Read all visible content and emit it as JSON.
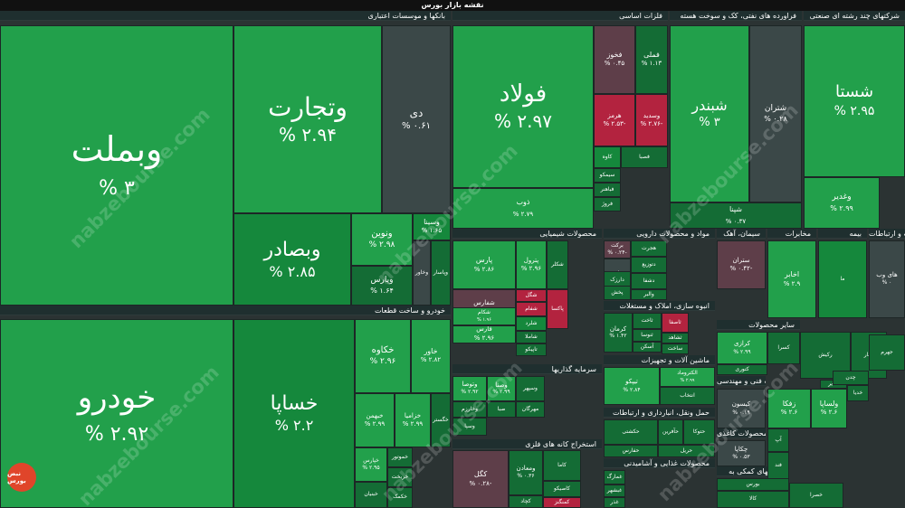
{
  "title": "نقشه بازار بورس",
  "watermark": "nabzebourse.com",
  "logo_text": "نبض بورس",
  "colors": {
    "g": "#22a04b",
    "G": "#15883c",
    "d": "#146c35",
    "k": "#3b4848",
    "r": "#b3233f",
    "R": "#962238",
    "m": "#5e3e49"
  },
  "sectors": [
    {
      "name": "بانکها و موسسات اعتباری"
    },
    {
      "name": "فلزات اساسی"
    },
    {
      "name": "فراورده های نفتی، کک و سوخت هسته"
    },
    {
      "name": "شرکتهای چند رشته ای صنعتی"
    },
    {
      "name": "خودرو و ساخت قطعات"
    },
    {
      "name": "محصولات شیمیایی"
    },
    {
      "name": "مواد و محصولات دارویی"
    },
    {
      "name": "سیمان، آهک"
    },
    {
      "name": "مخابرات"
    },
    {
      "name": "بیمه"
    },
    {
      "name": "اطلاعات و ارتباطات"
    },
    {
      "name": "انبوه سازی، املاک و مستغلات"
    },
    {
      "name": "ماشین آلات و تجهیزات"
    },
    {
      "name": "سایر محصولات"
    },
    {
      "name": "سرمایه گذاریها"
    },
    {
      "name": "حمل ونقل، انبارداری و ارتباطات"
    },
    {
      "name": "استخراج کانه های فلزی"
    },
    {
      "name": "محصولات غذایی و آشامیدنی"
    },
    {
      "name": "خدمات فنی و مهندسی"
    },
    {
      "name": "محصولات کاغذی"
    },
    {
      "name": "فعالیتهای کمکی به"
    }
  ],
  "tiles": [
    {
      "name": "وبملت",
      "value": "% ۳",
      "color": "g"
    },
    {
      "name": "وتجارت",
      "value": "% ۲.۹۴",
      "color": "g"
    },
    {
      "name": "دی",
      "value": "% ۰.۶۱",
      "color": "k"
    },
    {
      "name": "وبصادر",
      "value": "% ۲.۸۵",
      "color": "G"
    },
    {
      "name": "ونوین",
      "value": "% ۲.۹۸",
      "color": "g"
    },
    {
      "name": "وسینا",
      "value": "% ۱.۶۵",
      "color": "G"
    },
    {
      "name": "وپارس",
      "value": "% ۱.۶۴",
      "color": "d"
    },
    {
      "name": "وخاور",
      "value": "",
      "color": "k"
    },
    {
      "name": "وپاسار",
      "value": "",
      "color": "d"
    },
    {
      "name": "فولاد",
      "value": "% ۲.۹۷",
      "color": "g"
    },
    {
      "name": "فخوز",
      "value": "% ۰.۴۵",
      "color": "m"
    },
    {
      "name": "فملی",
      "value": "% ۱.۱۳",
      "color": "d"
    },
    {
      "name": "هرمز",
      "value": "% ۲.۵۳-",
      "color": "r"
    },
    {
      "name": "وسدید",
      "value": "% ۲.۷۶-",
      "color": "r"
    },
    {
      "name": "کاوه",
      "value": "",
      "color": "G"
    },
    {
      "name": "فصبا",
      "value": "",
      "color": "d"
    },
    {
      "name": "سیمکو",
      "value": "",
      "color": "d"
    },
    {
      "name": "فباهنر",
      "value": "",
      "color": "d"
    },
    {
      "name": "فروژ",
      "value": "",
      "color": "d"
    },
    {
      "name": "ذوب",
      "value": "% ۲.۷۹",
      "color": "g"
    },
    {
      "name": "شبندر",
      "value": "% ۳",
      "color": "g"
    },
    {
      "name": "شتران",
      "value": "% ۰.۲۸",
      "color": "k"
    },
    {
      "name": "شپنا",
      "value": "% ۰.۳۷",
      "color": "d"
    },
    {
      "name": "شستا",
      "value": "% ۲.۹۵",
      "color": "g"
    },
    {
      "name": "وغدیر",
      "value": "% ۲.۹۹",
      "color": "g"
    },
    {
      "name": "خودرو",
      "value": "% ۲.۹۲",
      "color": "g"
    },
    {
      "name": "خساپا",
      "value": "% ۲.۲",
      "color": "G"
    },
    {
      "name": "خکاوه",
      "value": "% ۲.۹۶",
      "color": "g"
    },
    {
      "name": "خاور",
      "value": "% ۲.۸۲",
      "color": "g"
    },
    {
      "name": "خبهمن",
      "value": "% ۲.۹۹",
      "color": "g"
    },
    {
      "name": "خزامیا",
      "value": "% ۲.۹۹",
      "color": "g"
    },
    {
      "name": "خگستر",
      "value": "",
      "color": "d"
    },
    {
      "name": "خپارس",
      "value": "% ۲.۹۵",
      "color": "g"
    },
    {
      "name": "خموتور",
      "value": "",
      "color": "d"
    },
    {
      "name": "خریخت",
      "value": "",
      "color": "d"
    },
    {
      "name": "خبنیان",
      "value": "",
      "color": "d"
    },
    {
      "name": "خکمک",
      "value": "",
      "color": "d"
    },
    {
      "name": "پارس",
      "value": "% ۲.۸۶",
      "color": "g"
    },
    {
      "name": "پترول",
      "value": "% ۲.۹۶",
      "color": "g"
    },
    {
      "name": "فارس",
      "value": "% ۲.۹۶",
      "color": "g"
    },
    {
      "name": "شفارس",
      "value": "% ۰.۱۸-",
      "color": "m"
    },
    {
      "name": "شکام",
      "value": "% ۱.۹۶",
      "color": "g"
    },
    {
      "name": "شگل",
      "value": "",
      "color": "r"
    },
    {
      "name": "شفام",
      "value": "",
      "color": "r"
    },
    {
      "name": "شلرد",
      "value": "",
      "color": "G"
    },
    {
      "name": "شاملا",
      "value": "",
      "color": "d"
    },
    {
      "name": "تاپیکو",
      "value": "",
      "color": "d"
    },
    {
      "name": "پاکسا",
      "value": "",
      "color": "r"
    },
    {
      "name": "شکلر",
      "value": "",
      "color": "d"
    },
    {
      "name": "برکت",
      "value": "% ۰.۲۴-",
      "color": "m"
    },
    {
      "name": "دارو",
      "value": "",
      "color": "k"
    },
    {
      "name": "هجرت",
      "value": "",
      "color": "d"
    },
    {
      "name": "دتوزیع",
      "value": "",
      "color": "d"
    },
    {
      "name": "دارزک",
      "value": "",
      "color": "d"
    },
    {
      "name": "دشفا",
      "value": "",
      "color": "d"
    },
    {
      "name": "پخش",
      "value": "",
      "color": "d"
    },
    {
      "name": "والبر",
      "value": "",
      "color": "d"
    },
    {
      "name": "ستران",
      "value": "% ۰.۴۲-",
      "color": "m"
    },
    {
      "name": "اخابر",
      "value": "% ۲.۹",
      "color": "g"
    },
    {
      "name": "ما",
      "value": "",
      "color": "G"
    },
    {
      "name": "های وب",
      "value": "% ۰",
      "color": "k"
    },
    {
      "name": "کرمان",
      "value": "% ۱.۴۲",
      "color": "d"
    },
    {
      "name": "ثاخت",
      "value": "",
      "color": "d"
    },
    {
      "name": "ثنوسا",
      "value": "",
      "color": "d"
    },
    {
      "name": "ثاصفا",
      "value": "",
      "color": "r"
    },
    {
      "name": "ثشاهد",
      "value": "",
      "color": "d"
    },
    {
      "name": "آسکن",
      "value": "",
      "color": "d"
    },
    {
      "name": "ساخت",
      "value": "",
      "color": "d"
    },
    {
      "name": "کرازی",
      "value": "% ۲.۹۹",
      "color": "g"
    },
    {
      "name": "کسرا",
      "value": "",
      "color": "d"
    },
    {
      "name": "کتوری",
      "value": "",
      "color": "d"
    },
    {
      "name": "رکیش",
      "value": "",
      "color": "d"
    },
    {
      "name": "فغار",
      "value": "",
      "color": "d"
    },
    {
      "name": "تیپکو",
      "value": "% ۲.۸۴",
      "color": "g"
    },
    {
      "name": "الکتروماد",
      "value": "% ۲.۹۹",
      "color": "g"
    },
    {
      "name": "انتخاب",
      "value": "",
      "color": "d"
    },
    {
      "name": "وتوصا",
      "value": "% ۲.۹۲",
      "color": "g"
    },
    {
      "name": "وصنا",
      "value": "% ۲.۹۹",
      "color": "g"
    },
    {
      "name": "وسپهر",
      "value": "",
      "color": "d"
    },
    {
      "name": "وخارزم",
      "value": "",
      "color": "d"
    },
    {
      "name": "صبا",
      "value": "",
      "color": "d"
    },
    {
      "name": "مهرگان",
      "value": "",
      "color": "d"
    },
    {
      "name": "وسپا",
      "value": "",
      "color": "d"
    },
    {
      "name": "حکشتی",
      "value": "",
      "color": "d"
    },
    {
      "name": "حفارس",
      "value": "",
      "color": "d"
    },
    {
      "name": "حآفرین",
      "value": "",
      "color": "d"
    },
    {
      "name": "حتوکا",
      "value": "",
      "color": "d"
    },
    {
      "name": "حریل",
      "value": "",
      "color": "d"
    },
    {
      "name": "کگل",
      "value": "% ۰.۲۸-",
      "color": "m"
    },
    {
      "name": "ومعادن",
      "value": "% ۰.۳۶",
      "color": "d"
    },
    {
      "name": "کاما",
      "value": "",
      "color": "d"
    },
    {
      "name": "کاصیکو",
      "value": "",
      "color": "d"
    },
    {
      "name": "کچاد",
      "value": "",
      "color": "d"
    },
    {
      "name": "کمنگنز",
      "value": "",
      "color": "r"
    },
    {
      "name": "غمارگ",
      "value": "",
      "color": "d"
    },
    {
      "name": "غبشهر",
      "value": "",
      "color": "d"
    },
    {
      "name": "غذر",
      "value": "",
      "color": "d"
    },
    {
      "name": "کیسون",
      "value": "% ۰.۱۹",
      "color": "k"
    },
    {
      "name": "چکاپا",
      "value": "% ۰.۵۳",
      "color": "k"
    },
    {
      "name": "زفکا",
      "value": "% ۲.۶",
      "color": "g"
    },
    {
      "name": "ولساپا",
      "value": "% ۲.۶",
      "color": "g"
    },
    {
      "name": "سایر",
      "value": "",
      "color": "d"
    },
    {
      "name": "چدن",
      "value": "",
      "color": "d"
    },
    {
      "name": "جهرم",
      "value": "",
      "color": "d"
    },
    {
      "name": "خدیا",
      "value": "",
      "color": "d"
    },
    {
      "name": "بورس",
      "value": "",
      "color": "d"
    },
    {
      "name": "کالا",
      "value": "",
      "color": "d"
    },
    {
      "name": "آپ",
      "value": "",
      "color": "d"
    },
    {
      "name": "خصرا",
      "value": "",
      "color": "d"
    },
    {
      "name": "فند",
      "value": "",
      "color": "d"
    }
  ]
}
